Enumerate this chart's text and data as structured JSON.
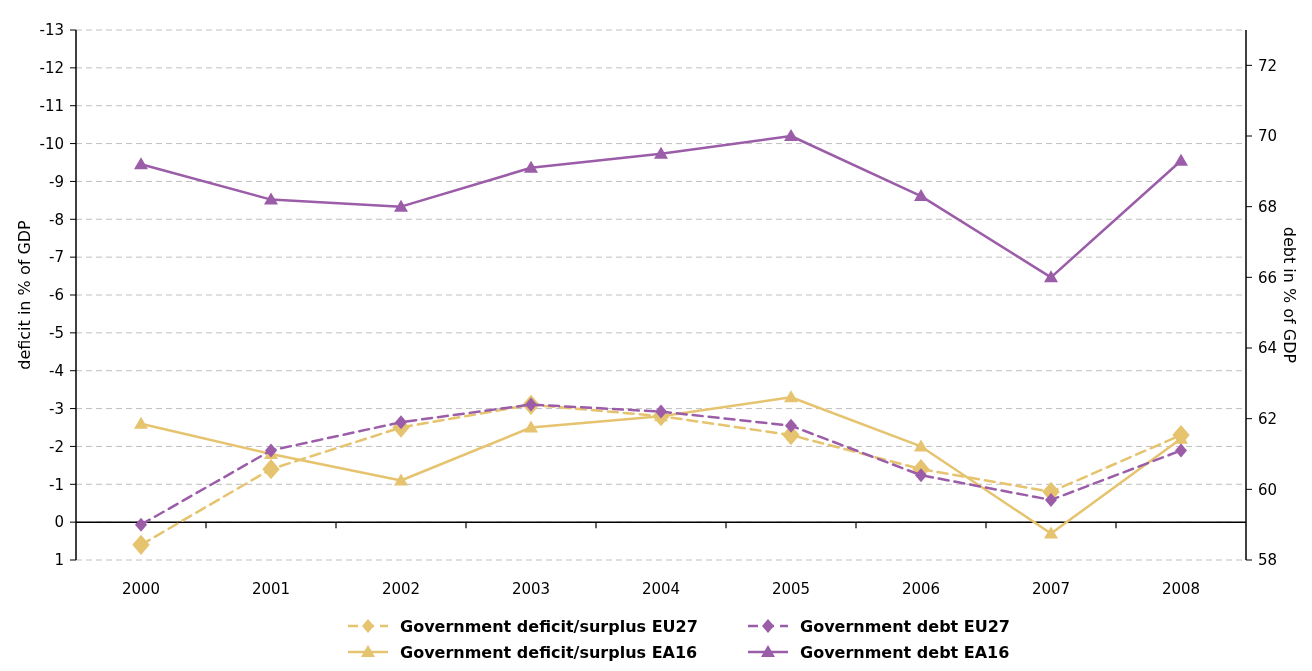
{
  "chart_data": {
    "type": "line",
    "categories": [
      "2000",
      "2001",
      "2002",
      "2003",
      "2004",
      "2005",
      "2006",
      "2007",
      "2008"
    ],
    "series": [
      {
        "name": "Government deficit/surplus EU27",
        "color": "#e6c36e",
        "marker": "diamond",
        "line_style": "dashed",
        "values": [
          0.6,
          -1.4,
          -2.5,
          -3.1,
          -2.8,
          -2.3,
          -1.4,
          -0.8,
          -2.3
        ]
      },
      {
        "name": "Government deficit/surplus EA16",
        "color": "#e6c36e",
        "marker": "triangle",
        "line_style": "solid",
        "values": [
          -2.6,
          -1.8,
          -1.1,
          -2.5,
          -2.8,
          -3.3,
          -2.0,
          0.3,
          -2.2
        ]
      },
      {
        "name": "Government debt EU27",
        "color": "#9b5ca8",
        "marker": "diamond",
        "line_style": "dashed",
        "axis": "y2",
        "values": [
          59.0,
          61.1,
          61.9,
          62.4,
          62.2,
          61.8,
          60.4,
          59.7,
          61.1
        ]
      },
      {
        "name": "Government debt EA16",
        "color": "#9b5ca8",
        "marker": "triangle",
        "line_style": "solid",
        "axis": "y2",
        "values": [
          69.2,
          68.2,
          68.0,
          69.1,
          69.5,
          70.0,
          68.3,
          66.0,
          69.3
        ]
      }
    ],
    "ylabel": "deficit in % of GDP",
    "y2label": "debt in % of GDP",
    "ylim": [
      1,
      -13
    ],
    "yticks": [
      1,
      0,
      -1,
      -2,
      -3,
      -4,
      -5,
      -6,
      -7,
      -8,
      -9,
      -10,
      -11,
      -12,
      -13
    ],
    "y2lim": [
      58,
      73
    ],
    "y2ticks": [
      58,
      60,
      62,
      64,
      66,
      68,
      70,
      72
    ],
    "grid": "y",
    "legend": "bottom"
  }
}
